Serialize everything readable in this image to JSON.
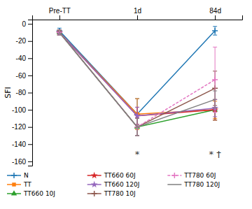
{
  "chart_data": {
    "type": "line",
    "categories": [
      "Pre-TT",
      "1d",
      "84d"
    ],
    "ylabel": "SFI",
    "ylim": [
      -165,
      5
    ],
    "yticks": [
      0,
      -20,
      -40,
      -60,
      -80,
      -100,
      -120,
      -140,
      -160
    ],
    "legend": "bottom",
    "series": [
      {
        "name": "N",
        "values": [
          -8,
          -105,
          -8
        ],
        "errors": [
          3,
          18,
          5
        ],
        "marker": "plus",
        "line_style": "solid"
      },
      {
        "name": "TT",
        "values": [
          -10,
          -105,
          -100
        ],
        "errors": [
          3,
          18,
          10
        ],
        "marker": "square",
        "line_style": "solid"
      },
      {
        "name": "TT660 10J",
        "values": [
          -10,
          -120,
          -100
        ],
        "errors": [
          3,
          10,
          12
        ],
        "marker": "triangle",
        "line_style": "solid"
      },
      {
        "name": "TT660 60J",
        "values": [
          -10,
          -107,
          -100
        ],
        "errors": [
          3,
          10,
          12
        ],
        "marker": "star",
        "line_style": "solid"
      },
      {
        "name": "TT660 120J",
        "values": [
          -10,
          -107,
          -98
        ],
        "errors": [
          3,
          10,
          10
        ],
        "marker": "star",
        "line_style": "solid"
      },
      {
        "name": "TT780 10J",
        "values": [
          -10,
          -120,
          -75
        ],
        "errors": [
          3,
          10,
          20
        ],
        "marker": "plus",
        "line_style": "solid"
      },
      {
        "name": "TT780 60J",
        "values": [
          -10,
          -120,
          -65
        ],
        "errors": [
          3,
          10,
          38
        ],
        "marker": "plus",
        "line_style": "dashed"
      },
      {
        "name": "TT780 120J",
        "values": [
          -10,
          -120,
          -88
        ],
        "errors": [
          3,
          10,
          10
        ],
        "marker": "none",
        "line_style": "solid"
      }
    ],
    "annotations": [
      {
        "x": "1d",
        "y": -152,
        "text": "*"
      },
      {
        "x": "84d",
        "y": -152,
        "text": "* †"
      }
    ]
  }
}
